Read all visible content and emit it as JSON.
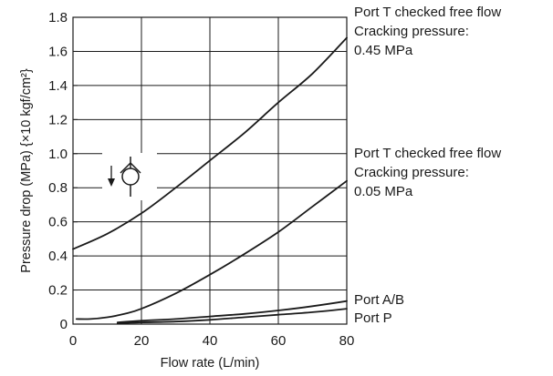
{
  "chart_data": {
    "type": "line",
    "title": "",
    "xlabel": "Flow rate (L/min)",
    "ylabel": "Pressure drop (MPa) {×10 kgf/cm²}",
    "xlim": [
      0,
      80
    ],
    "ylim": [
      0,
      1.8
    ],
    "x_ticks": [
      "0",
      "20",
      "40",
      "60",
      "80"
    ],
    "y_ticks": [
      "0",
      "0.2",
      "0.4",
      "0.6",
      "0.8",
      "1.0",
      "1.2",
      "1.4",
      "1.6",
      "1.8"
    ],
    "grid": true,
    "series": [
      {
        "label_lines": [
          "Port T checked free flow",
          "Cracking pressure:",
          "0.45 MPa"
        ],
        "x": [
          0,
          10,
          20,
          30,
          40,
          50,
          60,
          70,
          80
        ],
        "y": [
          0.44,
          0.53,
          0.65,
          0.8,
          0.96,
          1.12,
          1.3,
          1.47,
          1.68
        ]
      },
      {
        "label_lines": [
          "Port T checked free flow",
          "Cracking pressure:",
          "0.05 MPa"
        ],
        "x": [
          1,
          5,
          10,
          15,
          20,
          30,
          40,
          50,
          60,
          70,
          80
        ],
        "y": [
          0.03,
          0.03,
          0.04,
          0.06,
          0.09,
          0.18,
          0.29,
          0.41,
          0.54,
          0.69,
          0.84
        ]
      },
      {
        "label_lines": [
          "Port A/B"
        ],
        "x": [
          13,
          20,
          30,
          40,
          50,
          60,
          70,
          80
        ],
        "y": [
          0.01,
          0.02,
          0.03,
          0.045,
          0.06,
          0.08,
          0.105,
          0.135
        ]
      },
      {
        "label_lines": [
          "Port P"
        ],
        "x": [
          13,
          20,
          30,
          40,
          50,
          60,
          70,
          80
        ],
        "y": [
          0.005,
          0.01,
          0.015,
          0.025,
          0.04,
          0.055,
          0.07,
          0.09
        ]
      }
    ],
    "symbol": "check-valve-symbol"
  }
}
